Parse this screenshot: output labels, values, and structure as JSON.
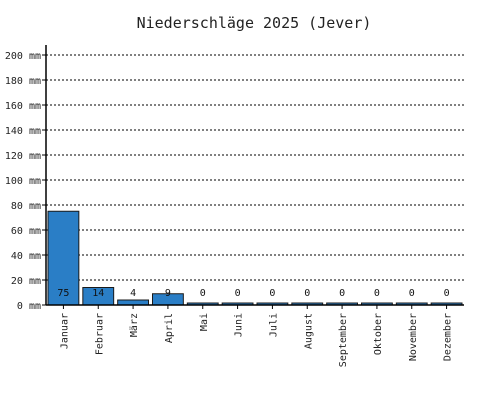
{
  "chart_data": {
    "type": "bar",
    "title": "Niederschläge 2025 (Jever)",
    "xlabel": "",
    "ylabel": "",
    "y_unit": "mm",
    "ylim": [
      0,
      200
    ],
    "ytick_step": 20,
    "grid": true,
    "categories": [
      "Januar",
      "Februar",
      "März",
      "April",
      "Mai",
      "Juni",
      "Juli",
      "August",
      "September",
      "Oktober",
      "November",
      "Dezember"
    ],
    "values": [
      75,
      14,
      4,
      9,
      0,
      0,
      0,
      0,
      0,
      0,
      0,
      0
    ],
    "bar_color": "#2a7ec6"
  }
}
